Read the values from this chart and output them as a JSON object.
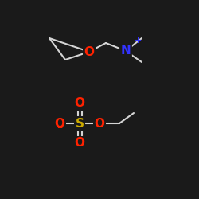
{
  "background_color": "#1a1a1a",
  "bond_color": "#d4d4d4",
  "atom_colors": {
    "N": "#3333ff",
    "O": "#ff2200",
    "S": "#ccaa00",
    "minus": "#ff2200",
    "plus": "#3333ff"
  },
  "fig_width": 2.5,
  "fig_height": 2.5,
  "dpi": 100,
  "font_size_atom": 11,
  "font_size_charge": 8,
  "line_width": 1.5
}
